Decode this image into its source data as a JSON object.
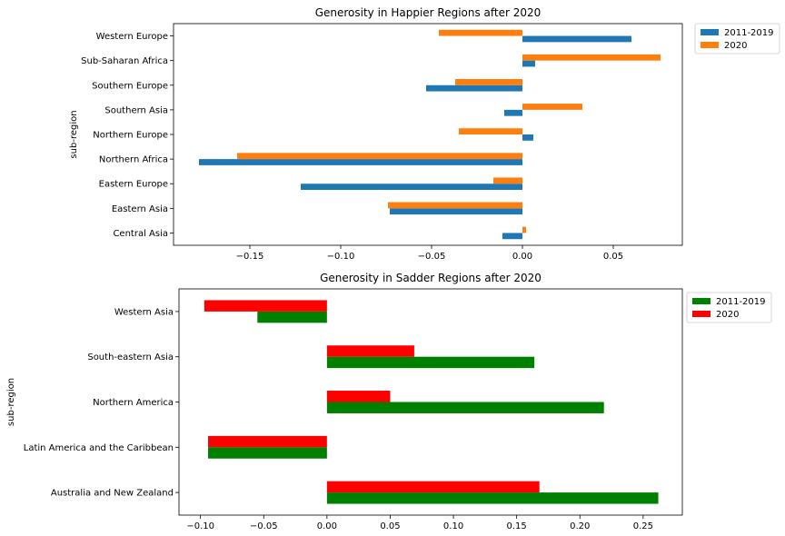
{
  "chart_data": [
    {
      "type": "bar",
      "orientation": "horizontal",
      "title": "Generosity in Happier Regions after 2020",
      "xlabel": "",
      "ylabel": "sub-region",
      "categories": [
        "Central Asia",
        "Eastern Asia",
        "Eastern Europe",
        "Northern Africa",
        "Northern Europe",
        "Southern Asia",
        "Southern Europe",
        "Sub-Saharan Africa",
        "Western Europe"
      ],
      "series": [
        {
          "name": "2011-2019",
          "color": "#1f77b4",
          "values": [
            -0.011,
            -0.073,
            -0.122,
            -0.178,
            0.006,
            -0.01,
            -0.053,
            0.007,
            0.06
          ]
        },
        {
          "name": "2020",
          "color": "#ff7f0e",
          "values": [
            0.002,
            -0.074,
            -0.016,
            -0.157,
            -0.035,
            0.033,
            -0.037,
            0.076,
            -0.046
          ]
        }
      ],
      "xlim": [
        -0.192,
        0.088
      ],
      "xticks": [
        -0.15,
        -0.1,
        -0.05,
        0.0,
        0.05
      ],
      "xtick_labels": [
        "−0.15",
        "−0.10",
        "−0.05",
        "0.00",
        "0.05"
      ],
      "legend": "outside-upper-right",
      "grid": false
    },
    {
      "type": "bar",
      "orientation": "horizontal",
      "title": "Generosity in Sadder Regions after 2020",
      "xlabel": "",
      "ylabel": "sub-region",
      "categories": [
        "Australia and New Zealand",
        "Latin America and the Caribbean",
        "Northern America",
        "South-eastern Asia",
        "Western Asia"
      ],
      "series": [
        {
          "name": "2011-2019",
          "color": "#008000",
          "values": [
            0.262,
            -0.094,
            0.219,
            0.164,
            -0.055
          ]
        },
        {
          "name": "2020",
          "color": "#ff0000",
          "values": [
            0.168,
            -0.094,
            0.05,
            0.069,
            -0.097
          ]
        }
      ],
      "xlim": [
        -0.117,
        0.281
      ],
      "xticks": [
        -0.1,
        -0.05,
        0.0,
        0.05,
        0.1,
        0.15,
        0.2,
        0.25
      ],
      "xtick_labels": [
        "−0.10",
        "−0.05",
        "0.00",
        "0.05",
        "0.10",
        "0.15",
        "0.20",
        "0.25"
      ],
      "legend": "outside-upper-right",
      "grid": false
    }
  ]
}
